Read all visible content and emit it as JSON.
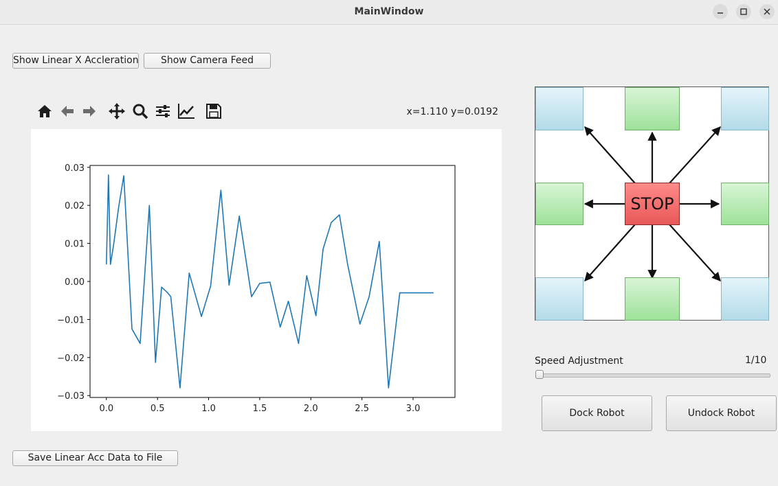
{
  "window": {
    "title": "MainWindow"
  },
  "top_buttons": {
    "show_accel": "Show Linear X Accleration",
    "show_camera": "Show Camera Feed"
  },
  "toolbar": {
    "icons": [
      "home-icon",
      "back-arrow-icon",
      "forward-arrow-icon",
      "pan-icon",
      "zoom-icon",
      "subplots-config-icon",
      "axes-edit-icon",
      "save-icon"
    ],
    "coords_readout": "x=1.110 y=0.0192"
  },
  "chart_data": {
    "type": "line",
    "title": "",
    "xlabel": "",
    "ylabel": "",
    "xlim": [
      -0.16,
      3.41
    ],
    "ylim": [
      -0.0305,
      0.0305
    ],
    "xticks": [
      "0.0",
      "0.5",
      "1.0",
      "1.5",
      "2.0",
      "2.5",
      "3.0"
    ],
    "yticks": [
      "0.03",
      "0.02",
      "0.01",
      "0.00",
      "−0.01",
      "−0.02",
      "−0.03"
    ],
    "line_color": "#1f77b4",
    "grid": false,
    "series": [
      {
        "x": [
          0.0,
          0.02,
          0.04,
          0.07,
          0.12,
          0.17,
          0.25,
          0.33,
          0.42,
          0.48,
          0.54,
          0.6,
          0.63,
          0.72,
          0.81,
          0.93,
          1.02,
          1.12,
          1.2,
          1.3,
          1.42,
          1.5,
          1.6,
          1.7,
          1.78,
          1.88,
          1.96,
          2.05,
          2.12,
          2.2,
          2.28,
          2.36,
          2.48,
          2.57,
          2.67,
          2.76,
          2.87,
          2.97,
          3.08,
          3.14,
          3.2
        ],
        "y": [
          0.0045,
          0.028,
          0.0045,
          0.0095,
          0.0195,
          0.0278,
          -0.0125,
          -0.0163,
          0.02,
          -0.0213,
          -0.0015,
          -0.003,
          -0.004,
          -0.028,
          0.0022,
          -0.0092,
          -0.0012,
          0.024,
          -0.001,
          0.0172,
          -0.004,
          -0.0005,
          -0.0002,
          -0.012,
          -0.0052,
          -0.0163,
          0.0015,
          -0.009,
          0.0085,
          0.0155,
          0.0175,
          0.0045,
          -0.0112,
          -0.004,
          0.0105,
          -0.028,
          -0.003,
          -0.003,
          -0.003,
          -0.003,
          -0.003
        ]
      }
    ]
  },
  "dpad": {
    "stop_label": "STOP"
  },
  "speed": {
    "label": "Speed Adjustment",
    "value_text": "1/10",
    "current": 1,
    "max": 10
  },
  "dock_buttons": {
    "dock": "Dock Robot",
    "undock": "Undock Robot"
  },
  "save_button": {
    "label": "Save Linear Acc Data to File"
  }
}
